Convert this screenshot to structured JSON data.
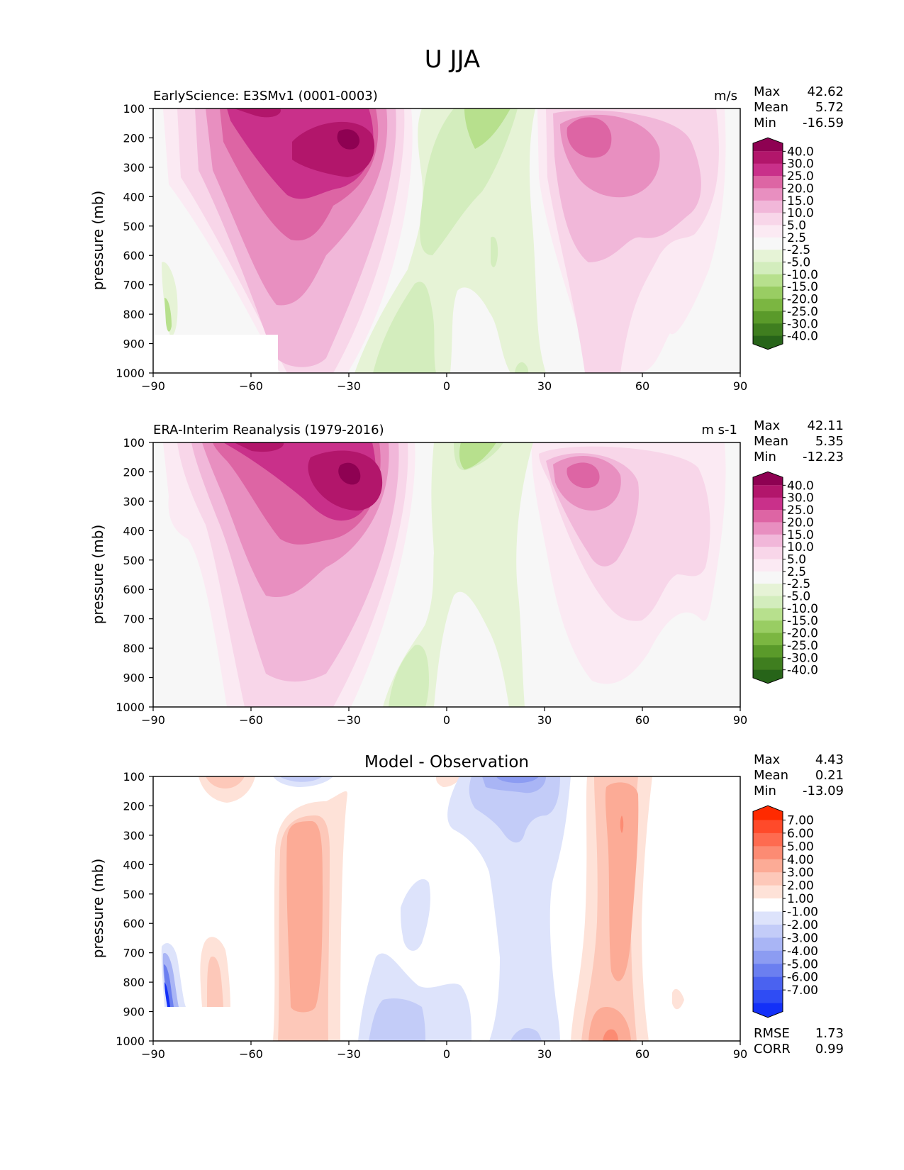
{
  "figure": {
    "title": "U JJA"
  },
  "chart_data": [
    {
      "type": "contour",
      "title": "EarlyScience: E3SMv1 (0001-0003)",
      "units": "m/s",
      "xlabel": "",
      "ylabel": "pressure (mb)",
      "xlim": [
        -90,
        90
      ],
      "ylim": [
        1000,
        100
      ],
      "xticks": [
        "−90",
        "−60",
        "−30",
        "0",
        "30",
        "60",
        "90"
      ],
      "yticks": [
        "100",
        "200",
        "300",
        "400",
        "500",
        "600",
        "700",
        "800",
        "900",
        "1000"
      ],
      "stats": {
        "max_label": "Max",
        "max": "42.62",
        "mean_label": "Mean",
        "mean": "5.72",
        "min_label": "Min",
        "min": "-16.59"
      },
      "colorbar": {
        "labels": [
          "40.0",
          "30.0",
          "25.0",
          "20.0",
          "15.0",
          "10.0",
          "5.0",
          "2.5",
          "-2.5",
          "-5.0",
          "-10.0",
          "-15.0",
          "-20.0",
          "-25.0",
          "-30.0",
          "-40.0"
        ],
        "colors": [
          "#8e0152",
          "#b2166b",
          "#c9308a",
          "#dd65a4",
          "#e88fc0",
          "#f1b7d9",
          "#f8d6e9",
          "#fbeaf3",
          "#f7f7f7",
          "#e6f3d6",
          "#d3edbd",
          "#b7e08d",
          "#99cd63",
          "#7bb641",
          "#5a9a2a",
          "#3f7e1f",
          "#276419"
        ]
      }
    },
    {
      "type": "contour",
      "title": "ERA-Interim Reanalysis (1979-2016)",
      "units": "m s-1",
      "xlabel": "",
      "ylabel": "pressure (mb)",
      "xlim": [
        -90,
        90
      ],
      "ylim": [
        1000,
        100
      ],
      "xticks": [
        "−90",
        "−60",
        "−30",
        "0",
        "30",
        "60",
        "90"
      ],
      "yticks": [
        "100",
        "200",
        "300",
        "400",
        "500",
        "600",
        "700",
        "800",
        "900",
        "1000"
      ],
      "stats": {
        "max_label": "Max",
        "max": "42.11",
        "mean_label": "Mean",
        "mean": "5.35",
        "min_label": "Min",
        "min": "-12.23"
      },
      "colorbar": {
        "labels": [
          "40.0",
          "30.0",
          "25.0",
          "20.0",
          "15.0",
          "10.0",
          "5.0",
          "2.5",
          "-2.5",
          "-5.0",
          "-10.0",
          "-15.0",
          "-20.0",
          "-25.0",
          "-30.0",
          "-40.0"
        ],
        "colors": [
          "#8e0152",
          "#b2166b",
          "#c9308a",
          "#dd65a4",
          "#e88fc0",
          "#f1b7d9",
          "#f8d6e9",
          "#fbeaf3",
          "#f7f7f7",
          "#e6f3d6",
          "#d3edbd",
          "#b7e08d",
          "#99cd63",
          "#7bb641",
          "#5a9a2a",
          "#3f7e1f",
          "#276419"
        ]
      }
    },
    {
      "type": "contour",
      "title": "Model - Observation",
      "units": "",
      "xlabel": "",
      "ylabel": "pressure (mb)",
      "xlim": [
        -90,
        90
      ],
      "ylim": [
        1000,
        100
      ],
      "xticks": [
        "−90",
        "−60",
        "−30",
        "0",
        "30",
        "60",
        "90"
      ],
      "yticks": [
        "100",
        "200",
        "300",
        "400",
        "500",
        "600",
        "700",
        "800",
        "900",
        "1000"
      ],
      "stats": {
        "max_label": "Max",
        "max": "4.43",
        "mean_label": "Mean",
        "mean": "0.21",
        "min_label": "Min",
        "min": "-13.09"
      },
      "metrics": {
        "rmse_label": "RMSE",
        "rmse": "1.73",
        "corr_label": "CORR",
        "corr": "0.99"
      },
      "colorbar": {
        "labels": [
          "7.00",
          "6.00",
          "5.00",
          "4.00",
          "3.00",
          "2.00",
          "1.00",
          "-1.00",
          "-2.00",
          "-3.00",
          "-4.00",
          "-5.00",
          "-6.00",
          "-7.00"
        ],
        "colors": [
          "#ff2a00",
          "#ff4a2a",
          "#fe6b50",
          "#fc8b73",
          "#fcab96",
          "#fdc8b9",
          "#fee2d8",
          "#ffffff",
          "#dde3fb",
          "#c3ccf8",
          "#a9b5f5",
          "#8c9cf2",
          "#6b7ff0",
          "#4a62f0",
          "#2f4cf4",
          "#1330f8"
        ]
      }
    }
  ]
}
